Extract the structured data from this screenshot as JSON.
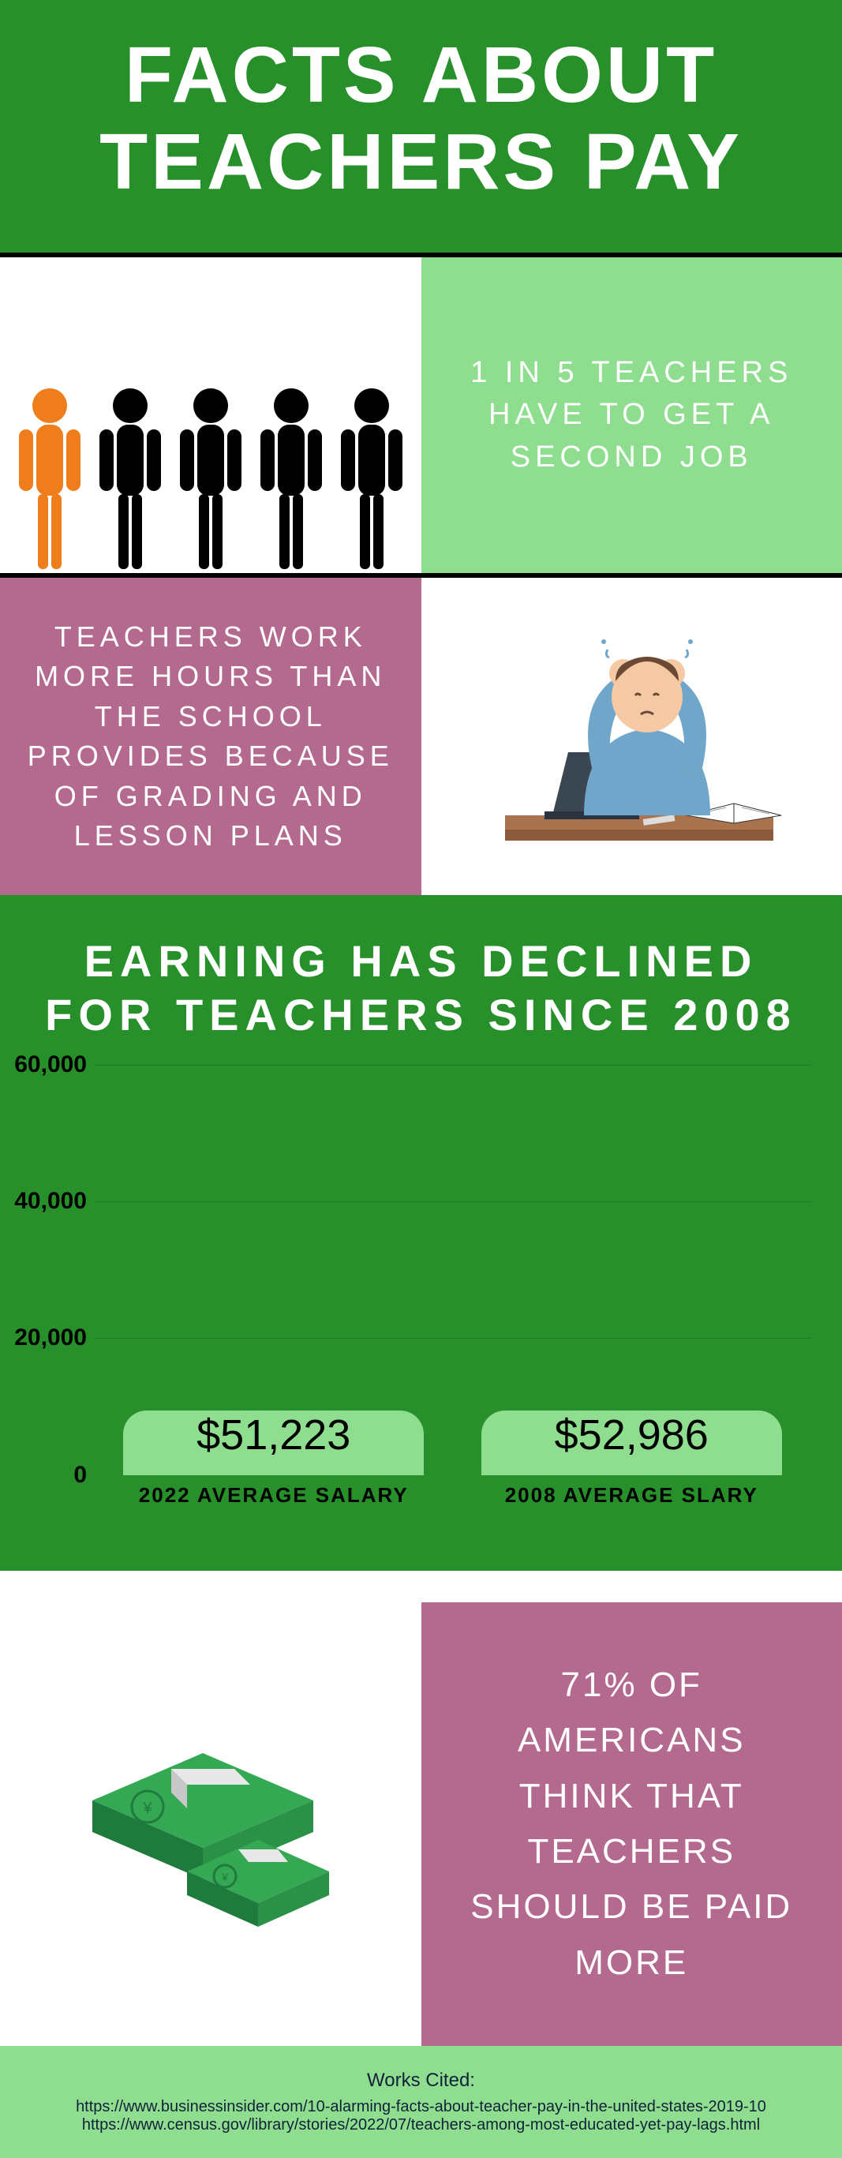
{
  "header": {
    "title": "FACTS ABOUT TEACHERS PAY"
  },
  "sec1": {
    "fact": "1 IN 5 TEACHERS HAVE TO GET A SECOND JOB",
    "people": {
      "count": 5,
      "highlight_index": 0,
      "highlight_color": "#f07d1b",
      "default_color": "#000000"
    }
  },
  "sec2": {
    "fact": "TEACHERS WORK MORE HOURS THAN THE SCHOOL PROVIDES BECAUSE OF GRADING AND LESSON PLANS",
    "illustration": {
      "shirt_color": "#6fa6c9",
      "skin_color": "#f5c9a3",
      "hair_color": "#6b4a35",
      "laptop_color": "#3a4652",
      "desk_color": "#a8734d"
    }
  },
  "chart": {
    "title": "EARNING HAS DECLINED FOR TEACHERS SINCE 2008",
    "type": "bar",
    "ylim": [
      0,
      60000
    ],
    "yticks": [
      0,
      20000,
      40000,
      60000
    ],
    "ytick_labels": [
      "0",
      "20,000",
      "40,000",
      "60,000"
    ],
    "bars": [
      {
        "label": "2022 AVERAGE SALARY",
        "value": 51223,
        "display": "$51,223"
      },
      {
        "label": "2008 AVERAGE SLARY",
        "value": 52986,
        "display": "$52,986"
      }
    ],
    "bar_color": "#8fde8f",
    "background_color": "#27902a",
    "grid_color": "rgba(0,0,0,0.15)"
  },
  "sec4": {
    "fact": "71% OF AMERICANS THINK THAT TEACHERS SHOULD BE PAID MORE",
    "money_colors": {
      "dark": "#1f7a3e",
      "light": "#34a853",
      "band": "#e8e8e8"
    }
  },
  "footer": {
    "cited_title": "Works Cited:",
    "cites": [
      "https://www.businessinsider.com/10-alarming-facts-about-teacher-pay-in-the-united-states-2019-10",
      "https://www.census.gov/library/stories/2022/07/teachers-among-most-educated-yet-pay-lags.html"
    ]
  }
}
